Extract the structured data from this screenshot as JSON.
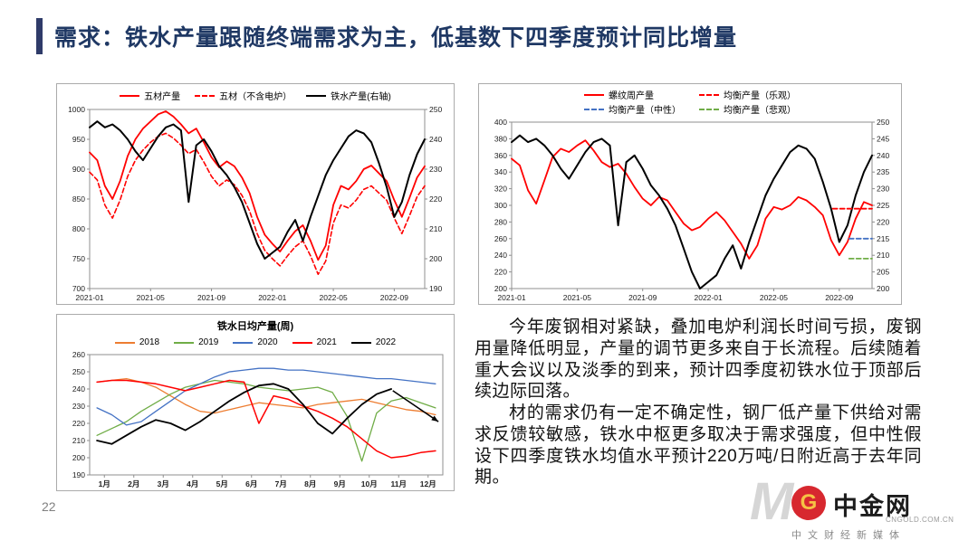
{
  "slide": {
    "title": "需求：铁水产量跟随终端需求为主，低基数下四季度预计同比增量",
    "page_number": "22",
    "accent_color": "#2f3b69",
    "title_color": "#1f3864"
  },
  "text_block": {
    "paragraphs": [
      "今年废钢相对紧缺，叠加电炉利润长时间亏损，废钢用量降低明显，产量的调节更多来自于长流程。后续随着重大会议以及淡季的到来，预计四季度初铁水位于顶部后续边际回落。",
      "材的需求仍有一定不确定性，钢厂低产量下供给对需求反馈较敏感，铁水中枢更多取决于需求强度，但中性假设下四季度铁水均值水平预计220万吨/日附近高于去年同期。"
    ]
  },
  "logo": {
    "name": "中金网",
    "domain": "CNGOLD.COM.CN",
    "tagline": "中文财经新媒体",
    "watermark": "M",
    "icon_letter": "G",
    "brand_red": "#d7282f",
    "brand_gold": "#f6c344"
  },
  "chart_data": [
    {
      "type": "line",
      "title": "",
      "legend_position": "top",
      "grid": false,
      "legend": [
        {
          "label": "五材产量",
          "color": "#ff0000",
          "dash": false
        },
        {
          "label": "五材（不含电炉）",
          "color": "#ff0000",
          "dash": true
        },
        {
          "label": "铁水产量(右轴)",
          "color": "#000000",
          "dash": false
        }
      ],
      "x_range": [
        0,
        22
      ],
      "x_ticks": [
        {
          "pos": 0,
          "label": "2021-01"
        },
        {
          "pos": 4,
          "label": "2021-05"
        },
        {
          "pos": 8,
          "label": "2021-09"
        },
        {
          "pos": 12,
          "label": "2022-01"
        },
        {
          "pos": 16,
          "label": "2022-05"
        },
        {
          "pos": 20,
          "label": "2022-09"
        }
      ],
      "y_left": {
        "min": 700,
        "max": 1000,
        "ticks": [
          1000,
          950,
          900,
          850,
          800,
          750,
          700
        ]
      },
      "y_right": {
        "min": 190,
        "max": 250,
        "ticks": [
          250,
          240,
          230,
          220,
          210,
          200,
          190
        ]
      },
      "series": [
        {
          "name": "五材产量",
          "axis": "left",
          "color": "#ff0000",
          "width": 1.8,
          "x_start": 0,
          "x_step": 0.5,
          "values": [
            928,
            915,
            872,
            850,
            880,
            922,
            950,
            968,
            980,
            992,
            997,
            988,
            975,
            960,
            968,
            945,
            920,
            903,
            913,
            905,
            886,
            860,
            820,
            790,
            775,
            762,
            780,
            796,
            806,
            780,
            748,
            772,
            840,
            872,
            866,
            880,
            900,
            906,
            893,
            880,
            848,
            820,
            852,
            886,
            905
          ]
        },
        {
          "name": "五材（不含电炉）",
          "axis": "left",
          "color": "#ff0000",
          "width": 1.6,
          "dash": "5 3",
          "x_start": 0,
          "x_step": 0.5,
          "values": [
            895,
            882,
            840,
            818,
            848,
            888,
            915,
            932,
            945,
            955,
            960,
            952,
            940,
            926,
            933,
            912,
            888,
            872,
            882,
            874,
            856,
            830,
            792,
            764,
            750,
            738,
            755,
            770,
            780,
            755,
            724,
            746,
            810,
            840,
            835,
            848,
            866,
            872,
            860,
            848,
            818,
            792,
            822,
            854,
            872
          ]
        },
        {
          "name": "铁水产量(右轴)",
          "axis": "right",
          "color": "#000000",
          "width": 2,
          "x_start": 0,
          "x_step": 0.5,
          "values": [
            244,
            246,
            244,
            245,
            243,
            240,
            236,
            233,
            237,
            241,
            244,
            245,
            243,
            219,
            238,
            240,
            236,
            231,
            228,
            224,
            219,
            212,
            205,
            200,
            202,
            204,
            209,
            213,
            206,
            214,
            221,
            228,
            233,
            237,
            241,
            243,
            242,
            239,
            232,
            224,
            214,
            219,
            228,
            235,
            240
          ]
        }
      ]
    },
    {
      "type": "line",
      "title": "",
      "legend_position": "top",
      "grid": false,
      "legend": [
        {
          "label": "螺纹周产量",
          "color": "#ff0000",
          "dash": false
        },
        {
          "label": "均衡产量（乐观）",
          "color": "#ff0000",
          "dash": true
        },
        {
          "label": "均衡产量（中性）",
          "color": "#4472c4",
          "dash": true
        },
        {
          "label": "均衡产量（悲观）",
          "color": "#70ad47",
          "dash": true
        }
      ],
      "x_range": [
        0,
        22
      ],
      "x_ticks": [
        {
          "pos": 0,
          "label": "2021-01"
        },
        {
          "pos": 4,
          "label": "2021-05"
        },
        {
          "pos": 8,
          "label": "2021-09"
        },
        {
          "pos": 12,
          "label": "2022-01"
        },
        {
          "pos": 16,
          "label": "2022-05"
        },
        {
          "pos": 20,
          "label": "2022-09"
        }
      ],
      "y_left": {
        "min": 200,
        "max": 400,
        "ticks": [
          400,
          380,
          360,
          340,
          320,
          300,
          280,
          260,
          240,
          220,
          200
        ]
      },
      "y_right": {
        "min": 200,
        "max": 250,
        "ticks": [
          250,
          245,
          240,
          235,
          230,
          225,
          220,
          215,
          210,
          205,
          200
        ]
      },
      "series": [
        {
          "name": "螺纹周产量",
          "axis": "left",
          "color": "#ff0000",
          "width": 1.8,
          "x_start": 0,
          "x_step": 0.5,
          "values": [
            356,
            348,
            318,
            302,
            330,
            358,
            368,
            364,
            372,
            378,
            366,
            352,
            346,
            350,
            338,
            322,
            308,
            300,
            310,
            306,
            292,
            278,
            270,
            274,
            284,
            292,
            282,
            268,
            254,
            236,
            252,
            284,
            298,
            295,
            300,
            310,
            306,
            298,
            288,
            258,
            240,
            256,
            284,
            304,
            300
          ]
        },
        {
          "name": "铁水产量(右轴)",
          "axis": "right",
          "color": "#000000",
          "width": 2,
          "x_start": 0,
          "x_step": 0.5,
          "values": [
            244,
            246,
            244,
            245,
            243,
            240,
            236,
            233,
            237,
            241,
            244,
            245,
            243,
            219,
            238,
            240,
            236,
            231,
            228,
            224,
            219,
            212,
            205,
            200,
            202,
            204,
            209,
            213,
            206,
            214,
            221,
            228,
            233,
            237,
            241,
            243,
            242,
            239,
            232,
            224,
            214,
            219,
            228,
            235,
            240
          ]
        },
        {
          "name": "均衡产量（乐观）",
          "axis": "right",
          "color": "#ff0000",
          "width": 1.8,
          "dash": "5 3",
          "points": [
            [
              19.6,
              224
            ],
            [
              22,
              224
            ]
          ]
        },
        {
          "name": "均衡产量（中性）",
          "axis": "right",
          "color": "#4472c4",
          "width": 1.8,
          "dash": "5 3",
          "points": [
            [
              20.6,
              215
            ],
            [
              22,
              215
            ]
          ]
        },
        {
          "name": "均衡产量（悲观）",
          "axis": "right",
          "color": "#70ad47",
          "width": 1.8,
          "dash": "5 3",
          "points": [
            [
              20.6,
              209
            ],
            [
              22,
              209
            ]
          ]
        }
      ]
    },
    {
      "type": "line",
      "title": "铁水日均产量(周)",
      "legend_position": "top",
      "grid": false,
      "legend": [
        {
          "label": "2018",
          "color": "#ed7d31",
          "dash": false
        },
        {
          "label": "2019",
          "color": "#70ad47",
          "dash": false
        },
        {
          "label": "2020",
          "color": "#4472c4",
          "dash": false
        },
        {
          "label": "2021",
          "color": "#ff0000",
          "dash": false
        },
        {
          "label": "2022",
          "color": "#000000",
          "dash": false
        }
      ],
      "x_range": [
        0,
        12
      ],
      "x_ticks": [
        {
          "pos": 0.5,
          "label": "1月",
          "bold": true
        },
        {
          "pos": 1.5,
          "label": "2月",
          "bold": true
        },
        {
          "pos": 2.5,
          "label": "3月",
          "bold": true
        },
        {
          "pos": 3.5,
          "label": "4月",
          "bold": true
        },
        {
          "pos": 4.5,
          "label": "5月",
          "bold": true
        },
        {
          "pos": 5.5,
          "label": "6月",
          "bold": true
        },
        {
          "pos": 6.5,
          "label": "7月",
          "bold": true
        },
        {
          "pos": 7.5,
          "label": "8月",
          "bold": true
        },
        {
          "pos": 8.5,
          "label": "9月",
          "bold": true
        },
        {
          "pos": 9.5,
          "label": "10月",
          "bold": true
        },
        {
          "pos": 10.5,
          "label": "11月",
          "bold": true
        },
        {
          "pos": 11.5,
          "label": "12月",
          "bold": true
        }
      ],
      "y_left": {
        "min": 190,
        "max": 260,
        "ticks": [
          260,
          250,
          240,
          230,
          220,
          210,
          200,
          190
        ]
      },
      "series": [
        {
          "name": "2018",
          "axis": "left",
          "color": "#ed7d31",
          "width": 1.3,
          "x_start": 0.25,
          "x_step": 0.5,
          "values": [
            244,
            245,
            246,
            244,
            241,
            236,
            231,
            227,
            226,
            228,
            230,
            232,
            231,
            230,
            229,
            231,
            232,
            233,
            234,
            232,
            230,
            228,
            227,
            225
          ]
        },
        {
          "name": "2019",
          "axis": "left",
          "color": "#70ad47",
          "width": 1.3,
          "x_start": 0.25,
          "x_step": 0.5,
          "values": [
            213,
            217,
            221,
            227,
            232,
            237,
            241,
            243,
            245,
            244,
            243,
            241,
            240,
            239,
            240,
            241,
            238,
            224,
            198,
            226,
            233,
            235,
            232,
            229
          ]
        },
        {
          "name": "2020",
          "axis": "left",
          "color": "#4472c4",
          "width": 1.3,
          "x_start": 0.25,
          "x_step": 0.5,
          "values": [
            229,
            225,
            219,
            221,
            227,
            233,
            239,
            243,
            247,
            250,
            251,
            252,
            252,
            251,
            251,
            250,
            249,
            248,
            247,
            246,
            246,
            245,
            244,
            243
          ]
        },
        {
          "name": "2021",
          "axis": "left",
          "color": "#ff0000",
          "width": 1.5,
          "x_start": 0.25,
          "x_step": 0.5,
          "values": [
            244,
            245,
            245,
            244,
            243,
            241,
            239,
            241,
            243,
            245,
            244,
            220,
            236,
            234,
            230,
            227,
            223,
            218,
            211,
            204,
            200,
            201,
            203,
            204
          ]
        },
        {
          "name": "2022",
          "axis": "left",
          "color": "#000000",
          "width": 1.8,
          "x_start": 0.25,
          "x_step": 0.5,
          "values": [
            210,
            208,
            213,
            218,
            222,
            220,
            216,
            221,
            227,
            233,
            238,
            242,
            243,
            240,
            231,
            220,
            214,
            223,
            231,
            237,
            240
          ]
        }
      ],
      "annotations": [
        {
          "type": "arrow",
          "axis": "left",
          "from": [
            10.3,
            239
          ],
          "to": [
            11.85,
            221
          ],
          "color": "#000000"
        }
      ]
    }
  ]
}
